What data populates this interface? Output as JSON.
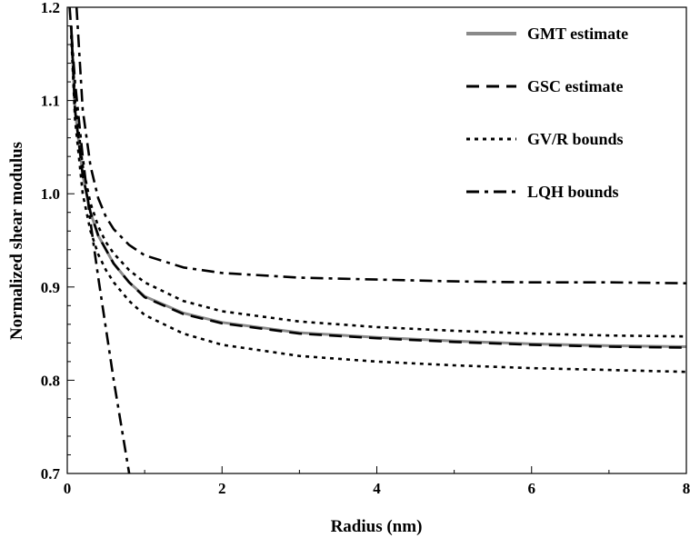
{
  "chart_data": {
    "type": "line",
    "xlabel": "Radius (nm)",
    "ylabel": "Normalized shear modulus",
    "xlim": [
      0,
      8
    ],
    "ylim": [
      0.7,
      1.2
    ],
    "x_ticks": [
      "0",
      "2",
      "4",
      "6",
      "8"
    ],
    "y_ticks": [
      "0.7",
      "0.8",
      "0.9",
      "1.0",
      "1.1",
      "1.2"
    ],
    "legend_position": "top-right",
    "series": [
      {
        "name": "GMT estimate",
        "style": "solid",
        "color": "#8a8a8a",
        "points": [
          [
            0.05,
            1.18
          ],
          [
            0.1,
            1.09
          ],
          [
            0.2,
            1.02
          ],
          [
            0.3,
            0.98
          ],
          [
            0.4,
            0.955
          ],
          [
            0.5,
            0.94
          ],
          [
            0.6,
            0.925
          ],
          [
            0.8,
            0.905
          ],
          [
            1.0,
            0.89
          ],
          [
            1.5,
            0.872
          ],
          [
            2.0,
            0.862
          ],
          [
            3.0,
            0.851
          ],
          [
            4.0,
            0.846
          ],
          [
            5.0,
            0.842
          ],
          [
            6.0,
            0.839
          ],
          [
            7.0,
            0.837
          ],
          [
            8.0,
            0.836
          ]
        ]
      },
      {
        "name": "GSC estimate",
        "style": "dashed",
        "color": "#000000",
        "points": [
          [
            0.05,
            1.18
          ],
          [
            0.1,
            1.09
          ],
          [
            0.2,
            1.02
          ],
          [
            0.3,
            0.98
          ],
          [
            0.4,
            0.955
          ],
          [
            0.5,
            0.94
          ],
          [
            0.6,
            0.925
          ],
          [
            0.8,
            0.905
          ],
          [
            1.0,
            0.889
          ],
          [
            1.5,
            0.871
          ],
          [
            2.0,
            0.861
          ],
          [
            3.0,
            0.85
          ],
          [
            4.0,
            0.845
          ],
          [
            5.0,
            0.841
          ],
          [
            6.0,
            0.838
          ],
          [
            7.0,
            0.836
          ],
          [
            8.0,
            0.835
          ]
        ]
      },
      {
        "name": "GV/R bounds",
        "style": "dotted",
        "color": "#000000",
        "points": [
          [
            0.05,
            1.18
          ],
          [
            0.1,
            1.1
          ],
          [
            0.2,
            1.03
          ],
          [
            0.3,
            0.99
          ],
          [
            0.4,
            0.965
          ],
          [
            0.5,
            0.948
          ],
          [
            0.6,
            0.936
          ],
          [
            0.8,
            0.918
          ],
          [
            1.0,
            0.905
          ],
          [
            1.5,
            0.885
          ],
          [
            2.0,
            0.874
          ],
          [
            3.0,
            0.863
          ],
          [
            4.0,
            0.857
          ],
          [
            5.0,
            0.853
          ],
          [
            6.0,
            0.85
          ],
          [
            7.0,
            0.848
          ],
          [
            8.0,
            0.847
          ]
        ]
      },
      {
        "name": "",
        "style": "dotted",
        "color": "#000000",
        "points": [
          [
            0.05,
            1.17
          ],
          [
            0.1,
            1.08
          ],
          [
            0.2,
            1.0
          ],
          [
            0.3,
            0.96
          ],
          [
            0.4,
            0.935
          ],
          [
            0.5,
            0.918
          ],
          [
            0.6,
            0.905
          ],
          [
            0.8,
            0.885
          ],
          [
            1.0,
            0.87
          ],
          [
            1.5,
            0.85
          ],
          [
            2.0,
            0.838
          ],
          [
            3.0,
            0.826
          ],
          [
            4.0,
            0.82
          ],
          [
            5.0,
            0.816
          ],
          [
            6.0,
            0.813
          ],
          [
            7.0,
            0.811
          ],
          [
            8.0,
            0.809
          ]
        ]
      },
      {
        "name": "LQH bounds",
        "style": "dashdot",
        "color": "#000000",
        "points": [
          [
            0.12,
            1.2
          ],
          [
            0.2,
            1.09
          ],
          [
            0.3,
            1.03
          ],
          [
            0.4,
            0.995
          ],
          [
            0.5,
            0.975
          ],
          [
            0.6,
            0.962
          ],
          [
            0.8,
            0.945
          ],
          [
            1.0,
            0.934
          ],
          [
            1.5,
            0.921
          ],
          [
            2.0,
            0.915
          ],
          [
            3.0,
            0.91
          ],
          [
            4.0,
            0.908
          ],
          [
            5.0,
            0.906
          ],
          [
            6.0,
            0.905
          ],
          [
            7.0,
            0.905
          ],
          [
            8.0,
            0.904
          ]
        ]
      },
      {
        "name": "",
        "style": "dashdot",
        "color": "#000000",
        "points": [
          [
            0.03,
            1.2
          ],
          [
            0.1,
            1.12
          ],
          [
            0.2,
            1.04
          ],
          [
            0.3,
            0.97
          ],
          [
            0.4,
            0.91
          ],
          [
            0.5,
            0.855
          ],
          [
            0.6,
            0.8
          ],
          [
            0.7,
            0.75
          ],
          [
            0.8,
            0.7
          ]
        ]
      }
    ]
  }
}
